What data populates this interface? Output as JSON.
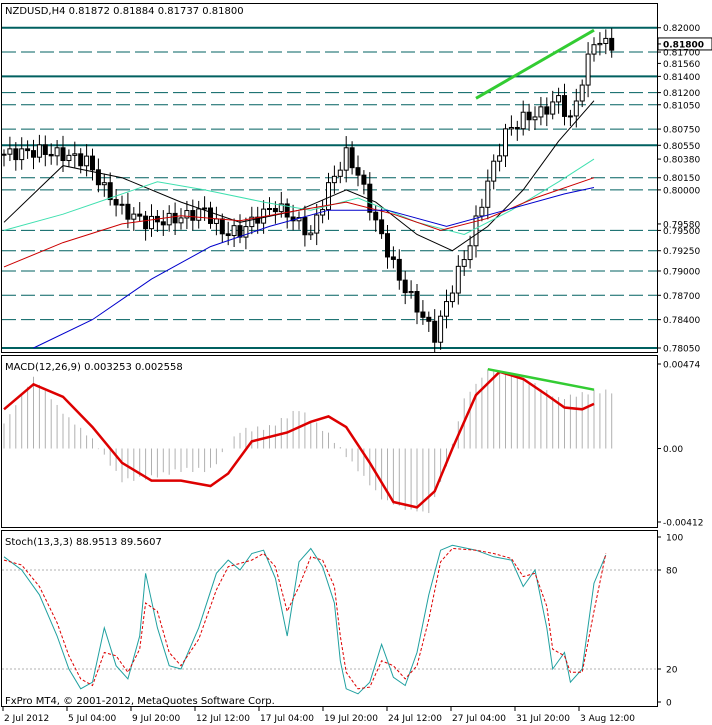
{
  "window": {
    "title": "NZDUSD,H4  0.81872 0.81884 0.81737 0.81800",
    "copyright": "FxPro MT4, © 2001-2012, MetaQuotes Software Corp."
  },
  "colors": {
    "background": "#ffffff",
    "candle": "#000000",
    "level_line": "#006060",
    "ma_black": "#000000",
    "ma_aqua": "#40e0b0",
    "ma_red": "#cc0000",
    "ma_blue": "#0000cc",
    "trend_green": "#33cc33",
    "macd_hist": "#b0b0b0",
    "macd_signal": "#dd0000",
    "stoch_main": "#20a0a0",
    "stoch_signal": "#dd0000"
  },
  "chart_data": [
    {
      "type": "candlestick",
      "symbol": "NZDUSD",
      "timeframe": "H4",
      "header": "NZDUSD,H4  0.81872 0.81884 0.81737 0.81800",
      "ohlc_last": {
        "open": 0.81872,
        "high": 0.81884,
        "low": 0.81737,
        "close": 0.818
      },
      "current_price_label": "0.81800",
      "ylim": [
        0.7805,
        0.8212
      ],
      "price_axis_labels": [
        "0.82000",
        "0.81800",
        "0.81700",
        "0.81560",
        "0.81400",
        "0.81200",
        "0.81050",
        "0.80750",
        "0.80550",
        "0.80380",
        "0.80150",
        "0.80000",
        "0.79580",
        "0.79500",
        "0.79250",
        "0.79000",
        "0.78700",
        "0.78400",
        "0.78050"
      ],
      "horizontal_levels": [
        0.82,
        0.817,
        0.814,
        0.812,
        0.8105,
        0.8075,
        0.8055,
        0.8015,
        0.8,
        0.795,
        0.7925,
        0.79,
        0.787,
        0.784,
        0.7805
      ],
      "heavy_levels": [
        0.82,
        0.814,
        0.8055,
        0.7805
      ],
      "x_labels": [
        "2 Jul 2012",
        "5 Jul 04:00",
        "9 Jul 20:00",
        "12 Jul 12:00",
        "17 Jul 04:00",
        "19 Jul 20:00",
        "24 Jul 12:00",
        "27 Jul 04:00",
        "31 Jul 20:00",
        "3 Aug 12:00"
      ],
      "trendline": {
        "from": {
          "bar": 80,
          "price": 0.8113
        },
        "to": {
          "bar": 100,
          "price": 0.8197
        }
      },
      "close_points": [
        [
          0,
          0.8044
        ],
        [
          6,
          0.8048
        ],
        [
          10,
          0.8043
        ],
        [
          14,
          0.8036
        ],
        [
          17,
          0.8001
        ],
        [
          20,
          0.7975
        ],
        [
          24,
          0.796
        ],
        [
          28,
          0.7963
        ],
        [
          31,
          0.7968
        ],
        [
          34,
          0.7975
        ],
        [
          37,
          0.7948
        ],
        [
          40,
          0.7948
        ],
        [
          43,
          0.7967
        ],
        [
          46,
          0.798
        ],
        [
          49,
          0.7965
        ],
        [
          52,
          0.7945
        ],
        [
          55,
          0.8003
        ],
        [
          58,
          0.8044
        ],
        [
          60,
          0.802
        ],
        [
          63,
          0.796
        ],
        [
          67,
          0.789
        ],
        [
          70,
          0.7855
        ],
        [
          73,
          0.782
        ],
        [
          76,
          0.788
        ],
        [
          79,
          0.7935
        ],
        [
          82,
          0.801
        ],
        [
          85,
          0.807
        ],
        [
          88,
          0.8088
        ],
        [
          91,
          0.8095
        ],
        [
          94,
          0.8112
        ],
        [
          96,
          0.8085
        ],
        [
          98,
          0.8135
        ],
        [
          100,
          0.8184
        ],
        [
          102,
          0.818
        ]
      ],
      "moving_averages": [
        {
          "color": "#000000",
          "points": [
            [
              0,
              0.796
            ],
            [
              10,
              0.803
            ],
            [
              20,
              0.8015
            ],
            [
              30,
              0.7985
            ],
            [
              40,
              0.796
            ],
            [
              50,
              0.7975
            ],
            [
              58,
              0.8
            ],
            [
              63,
              0.7985
            ],
            [
              70,
              0.7945
            ],
            [
              76,
              0.7925
            ],
            [
              82,
              0.7955
            ],
            [
              88,
              0.8
            ],
            [
              94,
              0.806
            ],
            [
              100,
              0.811
            ]
          ]
        },
        {
          "color": "#40e0b0",
          "points": [
            [
              0,
              0.795
            ],
            [
              10,
              0.797
            ],
            [
              18,
              0.799
            ],
            [
              26,
              0.801
            ],
            [
              34,
              0.8
            ],
            [
              44,
              0.7985
            ],
            [
              52,
              0.7975
            ],
            [
              60,
              0.799
            ],
            [
              70,
              0.796
            ],
            [
              78,
              0.7945
            ],
            [
              86,
              0.7975
            ],
            [
              94,
              0.801
            ],
            [
              100,
              0.8038
            ]
          ]
        },
        {
          "color": "#cc0000",
          "points": [
            [
              0,
              0.7905
            ],
            [
              10,
              0.7935
            ],
            [
              20,
              0.7958
            ],
            [
              30,
              0.7968
            ],
            [
              40,
              0.7962
            ],
            [
              50,
              0.7975
            ],
            [
              58,
              0.7985
            ],
            [
              66,
              0.797
            ],
            [
              74,
              0.795
            ],
            [
              82,
              0.7965
            ],
            [
              90,
              0.799
            ],
            [
              100,
              0.8015
            ]
          ]
        },
        {
          "color": "#0000cc",
          "points": [
            [
              5,
              0.7805
            ],
            [
              15,
              0.784
            ],
            [
              25,
              0.789
            ],
            [
              35,
              0.793
            ],
            [
              45,
              0.7955
            ],
            [
              55,
              0.7975
            ],
            [
              65,
              0.7975
            ],
            [
              75,
              0.7955
            ],
            [
              85,
              0.7975
            ],
            [
              95,
              0.7995
            ],
            [
              100,
              0.8003
            ]
          ]
        }
      ]
    },
    {
      "type": "line",
      "indicator": "MACD",
      "header": "MACD(12,26,9) 0.003253 0.002558",
      "axis_labels": [
        "0.00474",
        "0.00",
        "-0.00412"
      ],
      "ylim": [
        -0.00412,
        0.00474
      ],
      "signal_points": [
        [
          0,
          0.0022
        ],
        [
          5,
          0.0036
        ],
        [
          10,
          0.0029
        ],
        [
          15,
          0.0012
        ],
        [
          20,
          -0.0008
        ],
        [
          25,
          -0.0018
        ],
        [
          30,
          -0.0018
        ],
        [
          35,
          -0.0021
        ],
        [
          38,
          -0.0014
        ],
        [
          42,
          0.0004
        ],
        [
          48,
          0.0009
        ],
        [
          52,
          0.0015
        ],
        [
          55,
          0.0018
        ],
        [
          58,
          0.0012
        ],
        [
          62,
          -0.0008
        ],
        [
          66,
          -0.003
        ],
        [
          70,
          -0.0033
        ],
        [
          73,
          -0.0024
        ],
        [
          76,
          0.0
        ],
        [
          80,
          0.003
        ],
        [
          84,
          0.0043
        ],
        [
          88,
          0.0039
        ],
        [
          92,
          0.003
        ],
        [
          95,
          0.0023
        ],
        [
          98,
          0.0022
        ],
        [
          100,
          0.0025
        ]
      ],
      "histogram_points": [
        [
          0,
          0.0014
        ],
        [
          5,
          0.004
        ],
        [
          10,
          0.002
        ],
        [
          15,
          0.0005
        ],
        [
          20,
          -0.0018
        ],
        [
          25,
          -0.0016
        ],
        [
          30,
          -0.0012
        ],
        [
          35,
          -0.0012
        ],
        [
          40,
          0.001
        ],
        [
          45,
          0.0012
        ],
        [
          50,
          0.0022
        ],
        [
          55,
          0.0008
        ],
        [
          60,
          -0.0012
        ],
        [
          64,
          -0.0028
        ],
        [
          68,
          -0.0034
        ],
        [
          72,
          -0.0036
        ],
        [
          75,
          -0.001
        ],
        [
          78,
          0.0028
        ],
        [
          82,
          0.0044
        ],
        [
          86,
          0.0042
        ],
        [
          90,
          0.0036
        ],
        [
          94,
          0.0028
        ],
        [
          97,
          0.003
        ],
        [
          100,
          0.0032
        ]
      ],
      "trendline": {
        "from": {
          "bar": 82,
          "value": 0.00445
        },
        "to": {
          "bar": 100,
          "value": 0.0033
        }
      }
    },
    {
      "type": "line",
      "indicator": "Stochastic",
      "header": "Stoch(13,3,3) 88.9513 89.5607",
      "axis_labels": [
        "100",
        "80",
        "20",
        "0"
      ],
      "levels": [
        80,
        20
      ],
      "ylim": [
        0,
        100
      ],
      "main_points": [
        [
          0,
          88
        ],
        [
          3,
          80
        ],
        [
          6,
          65
        ],
        [
          9,
          40
        ],
        [
          11,
          20
        ],
        [
          13,
          8
        ],
        [
          15,
          12
        ],
        [
          17,
          45
        ],
        [
          19,
          22
        ],
        [
          21,
          14
        ],
        [
          23,
          40
        ],
        [
          24,
          78
        ],
        [
          26,
          45
        ],
        [
          28,
          22
        ],
        [
          30,
          20
        ],
        [
          33,
          45
        ],
        [
          36,
          78
        ],
        [
          38,
          86
        ],
        [
          40,
          80
        ],
        [
          42,
          90
        ],
        [
          44,
          92
        ],
        [
          46,
          75
        ],
        [
          48,
          40
        ],
        [
          50,
          85
        ],
        [
          52,
          93
        ],
        [
          54,
          82
        ],
        [
          56,
          60
        ],
        [
          57,
          25
        ],
        [
          58,
          8
        ],
        [
          60,
          5
        ],
        [
          62,
          12
        ],
        [
          64,
          35
        ],
        [
          66,
          15
        ],
        [
          68,
          10
        ],
        [
          70,
          30
        ],
        [
          72,
          65
        ],
        [
          74,
          92
        ],
        [
          76,
          95
        ],
        [
          80,
          92
        ],
        [
          83,
          88
        ],
        [
          86,
          86
        ],
        [
          88,
          70
        ],
        [
          90,
          80
        ],
        [
          92,
          45
        ],
        [
          93,
          20
        ],
        [
          95,
          30
        ],
        [
          96,
          12
        ],
        [
          98,
          20
        ],
        [
          100,
          72
        ],
        [
          102,
          89
        ]
      ],
      "signal_points": [
        [
          0,
          86
        ],
        [
          3,
          83
        ],
        [
          6,
          70
        ],
        [
          9,
          48
        ],
        [
          11,
          28
        ],
        [
          13,
          14
        ],
        [
          15,
          10
        ],
        [
          17,
          30
        ],
        [
          19,
          28
        ],
        [
          21,
          18
        ],
        [
          23,
          32
        ],
        [
          24,
          60
        ],
        [
          26,
          55
        ],
        [
          28,
          30
        ],
        [
          30,
          22
        ],
        [
          33,
          38
        ],
        [
          36,
          68
        ],
        [
          38,
          82
        ],
        [
          40,
          84
        ],
        [
          42,
          86
        ],
        [
          44,
          90
        ],
        [
          46,
          82
        ],
        [
          48,
          55
        ],
        [
          50,
          70
        ],
        [
          52,
          88
        ],
        [
          54,
          86
        ],
        [
          56,
          70
        ],
        [
          57,
          40
        ],
        [
          58,
          18
        ],
        [
          60,
          8
        ],
        [
          62,
          9
        ],
        [
          64,
          25
        ],
        [
          66,
          22
        ],
        [
          68,
          14
        ],
        [
          70,
          22
        ],
        [
          72,
          50
        ],
        [
          74,
          85
        ],
        [
          76,
          93
        ],
        [
          80,
          92
        ],
        [
          83,
          90
        ],
        [
          86,
          87
        ],
        [
          88,
          76
        ],
        [
          90,
          78
        ],
        [
          92,
          58
        ],
        [
          93,
          32
        ],
        [
          95,
          28
        ],
        [
          96,
          18
        ],
        [
          98,
          18
        ],
        [
          100,
          55
        ],
        [
          102,
          90
        ]
      ]
    }
  ]
}
